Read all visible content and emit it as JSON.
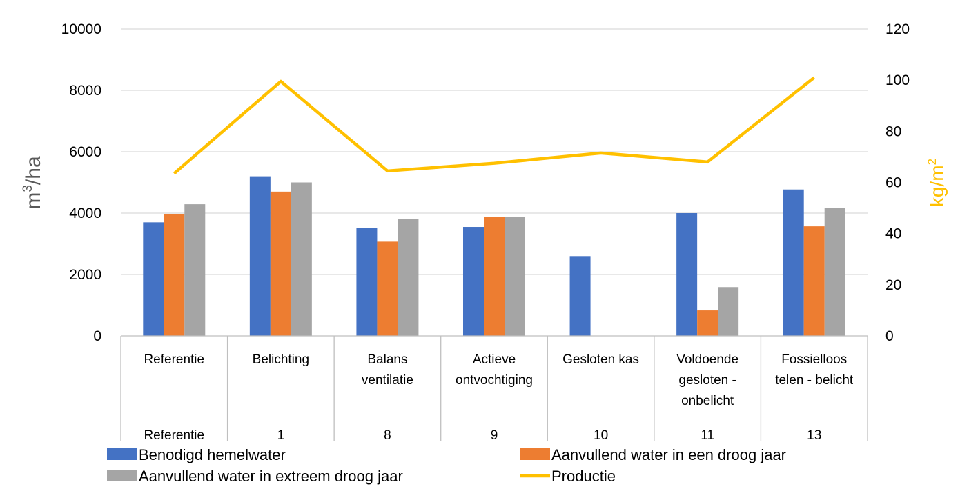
{
  "chart_data": {
    "type": "bar",
    "categories": [
      {
        "lines": [
          "Referentie"
        ],
        "group": "Referentie"
      },
      {
        "lines": [
          "Belichting"
        ],
        "group": "1"
      },
      {
        "lines": [
          "Balans",
          "ventilatie"
        ],
        "group": "8"
      },
      {
        "lines": [
          "Actieve",
          "ontvochtiging"
        ],
        "group": "9"
      },
      {
        "lines": [
          "Gesloten kas"
        ],
        "group": "10"
      },
      {
        "lines": [
          "Voldoende",
          "gesloten -",
          "onbelicht"
        ],
        "group": "11"
      },
      {
        "lines": [
          "Fossielloos",
          "telen - belicht"
        ],
        "group": "13"
      }
    ],
    "series": [
      {
        "name": "Benodigd hemelwater",
        "type": "bar",
        "axis": "left",
        "color": "#4472C4",
        "values": [
          3700,
          5200,
          3520,
          3550,
          2600,
          4000,
          4770
        ]
      },
      {
        "name": "Aanvullend water in een droog jaar",
        "type": "bar",
        "axis": "left",
        "color": "#ED7D31",
        "values": [
          3970,
          4700,
          3070,
          3880,
          0,
          830,
          3570
        ]
      },
      {
        "name": "Aanvullend water in extreem droog jaar",
        "type": "bar",
        "axis": "left",
        "color": "#A5A5A5",
        "values": [
          4290,
          5000,
          3800,
          3880,
          0,
          1590,
          4160
        ]
      },
      {
        "name": "Productie",
        "type": "line",
        "axis": "right",
        "color": "#FFC000",
        "values": [
          63.5,
          99.5,
          64.5,
          67.5,
          71.5,
          68,
          101
        ]
      }
    ],
    "y_left": {
      "label_base": "m",
      "label_sup": "3",
      "label_rest": "/ha",
      "min": 0,
      "max": 10000,
      "ticks": [
        "0",
        "2000",
        "4000",
        "6000",
        "8000",
        "10000"
      ]
    },
    "y_right": {
      "label_base": "kg/m",
      "label_sup": "2",
      "label_rest": "",
      "min": 0,
      "max": 120,
      "ticks": [
        "0",
        "20",
        "40",
        "60",
        "80",
        "100",
        "120"
      ]
    },
    "grid": true,
    "legend_position": "bottom",
    "colors": {
      "axis_label_left": "#595959",
      "axis_label_right": "#FFC000",
      "gridline": "#D9D9D9"
    }
  }
}
